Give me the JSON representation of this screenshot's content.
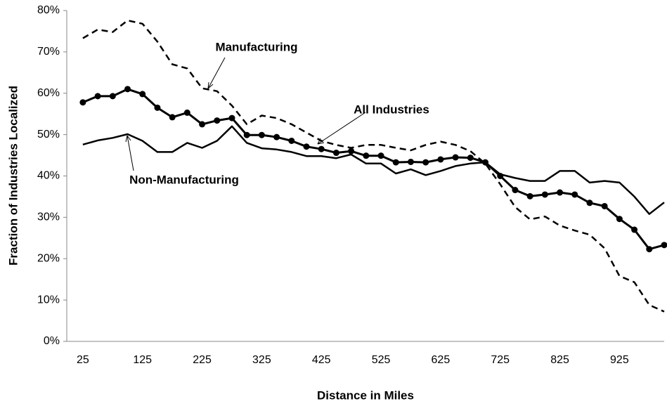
{
  "chart_data": {
    "type": "line",
    "x_label": "Distance in Miles",
    "y_label": "Fraction of Industries Localized",
    "x": [
      25,
      50,
      75,
      100,
      125,
      150,
      175,
      200,
      225,
      250,
      275,
      300,
      325,
      350,
      375,
      400,
      425,
      450,
      475,
      500,
      525,
      550,
      575,
      600,
      625,
      650,
      675,
      700,
      725,
      750,
      775,
      800,
      825,
      850,
      875,
      900,
      925,
      950,
      975,
      1000
    ],
    "xlim": [
      -2,
      1000
    ],
    "xticks": [
      25,
      125,
      225,
      325,
      425,
      525,
      625,
      725,
      825,
      925
    ],
    "ylim": [
      0,
      80
    ],
    "yticks": [
      {
        "value": 0,
        "label": "0%"
      },
      {
        "value": 10,
        "label": "10%"
      },
      {
        "value": 20,
        "label": "20%"
      },
      {
        "value": 30,
        "label": "30%"
      },
      {
        "value": 40,
        "label": "40%"
      },
      {
        "value": 50,
        "label": "50%"
      },
      {
        "value": 60,
        "label": "60%"
      },
      {
        "value": 70,
        "label": "70%"
      },
      {
        "value": 80,
        "label": "80%"
      }
    ],
    "grid": false,
    "series": [
      {
        "name": "Manufacturing",
        "color": "#000000",
        "dash": true,
        "markers": false,
        "values": [
          73.3,
          75.4,
          74.8,
          77.6,
          76.8,
          72.5,
          67,
          66,
          61.2,
          60.5,
          57,
          52.5,
          54.6,
          54,
          52.5,
          50.5,
          48.5,
          47.5,
          46.8,
          47.5,
          47.5,
          46.8,
          46.2,
          47.5,
          48.3,
          47.5,
          46,
          43,
          38,
          32.5,
          29.5,
          30.2,
          28,
          26.8,
          25.8,
          22.5,
          15.8,
          14.3,
          8.8,
          7.2
        ]
      },
      {
        "name": "All Industries",
        "color": "#000000",
        "dash": false,
        "markers": true,
        "values": [
          57.8,
          59.3,
          59.3,
          61,
          59.8,
          56.5,
          54.2,
          55.3,
          52.5,
          53.4,
          54,
          49.9,
          49.9,
          49.4,
          48.5,
          47.1,
          46.5,
          45.6,
          46,
          44.9,
          44.9,
          43.3,
          43.4,
          43.3,
          44,
          44.5,
          44.4,
          43.3,
          40,
          36.6,
          35.1,
          35.5,
          36,
          35.5,
          33.5,
          32.7,
          29.6,
          27,
          22.3,
          23.3
        ]
      },
      {
        "name": "Non-Manufacturing",
        "color": "#000000",
        "dash": false,
        "markers": false,
        "values": [
          47.6,
          48.6,
          49.2,
          50.1,
          48.5,
          45.8,
          45.8,
          48,
          46.8,
          48.5,
          52,
          48,
          46.7,
          46.4,
          45.8,
          44.8,
          44.8,
          44.3,
          45.2,
          43,
          43,
          40.6,
          41.6,
          40.2,
          41.2,
          42.4,
          43,
          43.3,
          40.4,
          39.5,
          38.8,
          38.8,
          41.2,
          41.2,
          38.4,
          38.8,
          38.4,
          35,
          30.8,
          33.6
        ]
      }
    ]
  }
}
